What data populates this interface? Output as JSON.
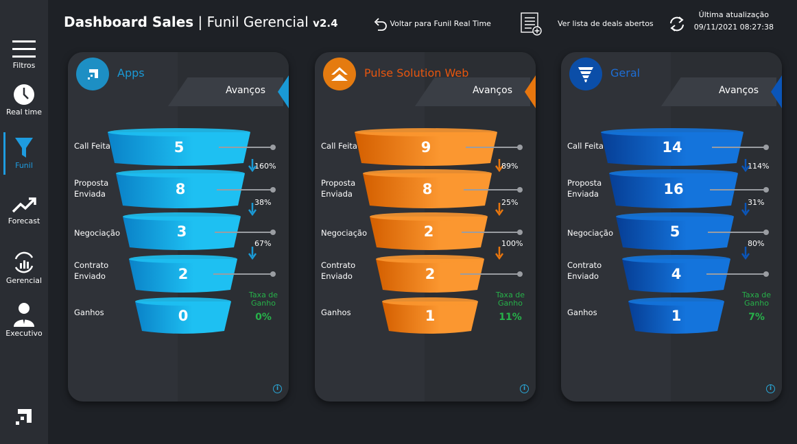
{
  "header": {
    "title_bold": "Dashboard Sales",
    "separator": "|",
    "title_sub": "Funil Gerencial",
    "version": "v2.4",
    "back_label": "Voltar para Funil Real Time",
    "deals_label": "Ver lista de deals abertos",
    "update_label": "Última atualização",
    "update_value": "09/11/2021 08:27:38"
  },
  "sidebar": {
    "items": [
      {
        "label": "Filtros",
        "icon": "menu-icon"
      },
      {
        "label": "Real time",
        "icon": "clock-icon"
      },
      {
        "label": "Funil",
        "icon": "funnel-icon"
      },
      {
        "label": "Forecast",
        "icon": "trend-icon"
      },
      {
        "label": "Gerencial",
        "icon": "chart-refresh-icon"
      },
      {
        "label": "Executivo",
        "icon": "person-icon"
      }
    ]
  },
  "stage_labels": [
    "Call Feita",
    "Proposta Enviada",
    "Negociação",
    "Contrato Enviado",
    "Ganhos"
  ],
  "avancos_label": "Avanços",
  "taxa_label": "Taxa de Ganho",
  "cards": [
    {
      "name": "Apps",
      "accent": "#1a9ad6",
      "name_color": "#1a9ad6",
      "logo_bg": "#1d8fc4",
      "values": [
        "5",
        "8",
        "3",
        "2",
        "0"
      ],
      "pcts": [
        "160%",
        "38%",
        "67%"
      ],
      "taxa": "0%"
    },
    {
      "name": "Pulse Solution Web",
      "accent": "#e8760e",
      "name_color": "#e8560e",
      "logo_bg": "#e57b10",
      "values": [
        "9",
        "8",
        "2",
        "2",
        "1"
      ],
      "pcts": [
        "89%",
        "25%",
        "100%"
      ],
      "taxa": "11%"
    },
    {
      "name": "Geral",
      "accent": "#0b55b8",
      "name_color": "#1d6ed6",
      "logo_bg": "#0b4ea8",
      "values": [
        "14",
        "16",
        "5",
        "4",
        "1"
      ],
      "pcts": [
        "114%",
        "31%",
        "80%"
      ],
      "taxa": "7%"
    }
  ],
  "colors": {
    "green": "#27b24a",
    "blue_light": "#1ec0f2",
    "blue_dark": "#0a82c8",
    "orange_light": "#fb9730",
    "orange_dark": "#d45f00",
    "navy_light": "#1474dc",
    "navy_dark": "#063e95"
  }
}
